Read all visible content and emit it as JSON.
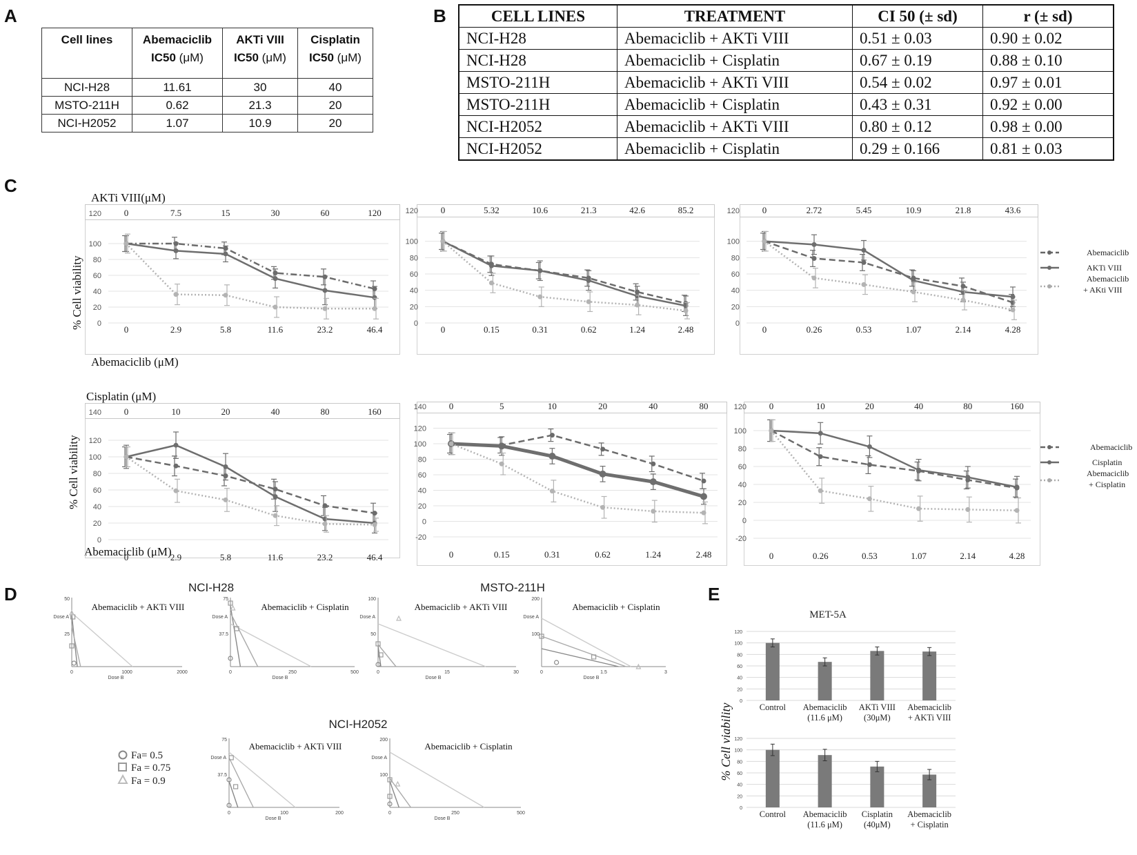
{
  "panels": {
    "A": "A",
    "B": "B",
    "C": "C",
    "D": "D",
    "E": "E"
  },
  "tableA": {
    "headers": [
      {
        "bold": "Cell lines",
        "unit": ""
      },
      {
        "bold": "Abemaciclib",
        "bold2": "IC50",
        "unit": " (μM)"
      },
      {
        "bold": "AKTi VIII",
        "bold2": "IC50",
        "unit": " (μM)"
      },
      {
        "bold": "Cisplatin",
        "bold2": "IC50",
        "unit": " (μM)"
      }
    ],
    "rows": [
      [
        "NCI-H28",
        "11.61",
        "30",
        "40"
      ],
      [
        "MSTO-211H",
        "0.62",
        "21.3",
        "20"
      ],
      [
        "NCI-H2052",
        "1.07",
        "10.9",
        "20"
      ]
    ]
  },
  "tableB": {
    "headers": [
      "CELL LINES",
      "TREATMENT",
      "CI 50 (± sd)",
      "r (± sd)"
    ],
    "rows": [
      [
        "NCI-H28",
        "Abemaciclib + AKTi VIII",
        "0.51 ± 0.03",
        "0.90 ± 0.02"
      ],
      [
        "NCI-H28",
        "Abemaciclib + Cisplatin",
        "0.67 ± 0.19",
        "0.88 ± 0.10"
      ],
      [
        "MSTO-211H",
        "Abemaciclib + AKTi VIII",
        "0.54 ± 0.02",
        "0.97 ± 0.01"
      ],
      [
        "MSTO-211H",
        "Abemaciclib + Cisplatin",
        "0.43 ± 0.31",
        "0.92 ± 0.00"
      ],
      [
        "NCI-H2052",
        "Abemaciclib + AKTi VIII",
        "0.80 ± 0.12",
        "0.98 ± 0.00"
      ],
      [
        "NCI-H2052",
        "Abemaciclib + Cisplatin",
        "0.29 ± 0.166",
        "0.81 ± 0.03"
      ]
    ]
  },
  "panelC": {
    "ylabel": "% Cell viability",
    "top_label_row1": "AKTi VIII(μM)",
    "top_label_row2": "Cisplatin (μM)",
    "bottom_label_row1": "Abemaciclib (μM)",
    "bottom_label_row2": "Abemaciclib  (μM)",
    "legend_row1": [
      "Abemaciclib",
      "AKTi VIII",
      "Abemaciclib",
      "+ AKti VIII"
    ],
    "legend_row2": [
      "Abemaciclib",
      "Cisplatin",
      "Abemaciclib",
      "+ Cisplatin"
    ]
  },
  "chart_data": [
    {
      "type": "line",
      "title": "NCI-H28 Abemaciclib + AKTi VIII",
      "ylabel": "% Cell viability",
      "ylim": [
        0,
        120
      ],
      "yticks": [
        "0",
        "20",
        "40",
        "60",
        "80",
        "100",
        "120"
      ],
      "top_x": [
        "0",
        "7.5",
        "15",
        "30",
        "60",
        "120"
      ],
      "bottom_x": [
        "0",
        "2.9",
        "5.8",
        "11.6",
        "23.2",
        "46.4"
      ],
      "series": [
        {
          "name": "Abemaciclib",
          "style": "dashdot",
          "values": [
            100,
            100,
            94,
            63,
            58,
            43
          ],
          "errors": [
            10,
            8,
            8,
            8,
            10,
            10
          ]
        },
        {
          "name": "AKTi VIII",
          "style": "solid",
          "values": [
            100,
            91,
            87,
            56,
            41,
            32
          ],
          "errors": [
            10,
            10,
            10,
            12,
            18,
            14
          ]
        },
        {
          "name": "Abemaciclib + AKti VIII",
          "style": "dotted",
          "values": [
            100,
            36,
            35,
            20,
            18,
            18
          ],
          "errors": [
            12,
            13,
            13,
            13,
            13,
            13
          ]
        }
      ]
    },
    {
      "type": "line",
      "title": "MSTO-211H Abemaciclib + AKTi VIII",
      "ylabel": "% Cell viability",
      "ylim": [
        0,
        120
      ],
      "yticks": [
        "0",
        "20",
        "40",
        "60",
        "80",
        "100",
        "120"
      ],
      "top_x": [
        "0",
        "5.32",
        "10.6",
        "21.3",
        "42.6",
        "85.2"
      ],
      "bottom_x": [
        "0",
        "0.15",
        "0.31",
        "0.62",
        "1.24",
        "2.48"
      ],
      "series": [
        {
          "name": "Abemaciclib",
          "style": "dashed",
          "values": [
            100,
            72,
            64,
            55,
            38,
            24
          ],
          "errors": [
            10,
            10,
            10,
            10,
            10,
            10
          ]
        },
        {
          "name": "AKTi VIII",
          "style": "solid",
          "values": [
            100,
            70,
            64,
            52,
            33,
            21
          ],
          "errors": [
            12,
            12,
            12,
            12,
            12,
            12
          ]
        },
        {
          "name": "Abemaciclib + AKti VIII",
          "style": "dotted",
          "values": [
            100,
            49,
            32,
            26,
            22,
            15
          ],
          "errors": [
            12,
            12,
            12,
            12,
            12,
            10
          ]
        }
      ]
    },
    {
      "type": "line",
      "title": "NCI-H2052 Abemaciclib + AKTi VIII",
      "ylabel": "% Cell viability",
      "ylim": [
        0,
        120
      ],
      "yticks": [
        "0",
        "20",
        "40",
        "60",
        "80",
        "100",
        "120"
      ],
      "top_x": [
        "0",
        "2.72",
        "5.45",
        "10.9",
        "21.8",
        "43.6"
      ],
      "bottom_x": [
        "0",
        "0.26",
        "0.53",
        "1.07",
        "2.14",
        "4.28"
      ],
      "series": [
        {
          "name": "Abemaciclib",
          "style": "dashed",
          "values": [
            100,
            79,
            74,
            55,
            45,
            25
          ],
          "errors": [
            10,
            10,
            10,
            10,
            10,
            10
          ]
        },
        {
          "name": "AKTi VIII",
          "style": "solid",
          "values": [
            100,
            96,
            89,
            52,
            38,
            32
          ],
          "errors": [
            12,
            12,
            12,
            12,
            12,
            12
          ]
        },
        {
          "name": "Abemaciclib + AKti VIII",
          "style": "dotted",
          "values": [
            100,
            55,
            47,
            38,
            28,
            16
          ],
          "errors": [
            12,
            12,
            12,
            12,
            12,
            12
          ]
        }
      ]
    },
    {
      "type": "line",
      "title": "NCI-H28 Abemaciclib + Cisplatin",
      "ylabel": "% Cell viability",
      "ylim": [
        0,
        140
      ],
      "yticks": [
        "0",
        "20",
        "40",
        "60",
        "80",
        "100",
        "120",
        "140"
      ],
      "top_x": [
        "0",
        "10",
        "20",
        "40",
        "80",
        "160"
      ],
      "bottom_x": [
        "0",
        "2.9",
        "5.8",
        "11.6",
        "23.2",
        "46.4"
      ],
      "series": [
        {
          "name": "Abemaciclib",
          "style": "dashed",
          "values": [
            100,
            89,
            77,
            61,
            41,
            32
          ],
          "errors": [
            12,
            12,
            12,
            12,
            12,
            12
          ]
        },
        {
          "name": "Cisplatin",
          "style": "solid",
          "values": [
            100,
            114,
            88,
            52,
            25,
            20
          ],
          "errors": [
            14,
            16,
            16,
            18,
            14,
            12
          ]
        },
        {
          "name": "Abemaciclib + Cisplatin",
          "style": "dotted",
          "values": [
            100,
            59,
            48,
            29,
            19,
            18
          ],
          "errors": [
            12,
            14,
            14,
            12,
            10,
            8
          ]
        }
      ]
    },
    {
      "type": "line",
      "title": "MSTO-211H Abemaciclib + Cisplatin",
      "ylabel": "% Cell viability",
      "ylim": [
        -20,
        140
      ],
      "yticks": [
        "-20",
        "0",
        "20",
        "40",
        "60",
        "80",
        "100",
        "120",
        "140"
      ],
      "top_x": [
        "0",
        "5",
        "10",
        "20",
        "40",
        "80"
      ],
      "bottom_x": [
        "0",
        "0.15",
        "0.31",
        "0.62",
        "1.24",
        "2.48"
      ],
      "series": [
        {
          "name": "Abemaciclib",
          "style": "dashed",
          "values": [
            100,
            98,
            111,
            93,
            74,
            52
          ],
          "errors": [
            12,
            10,
            8,
            8,
            10,
            10
          ]
        },
        {
          "name": "Cisplatin",
          "style": "solid",
          "values": [
            100,
            97,
            84,
            61,
            51,
            32
          ],
          "errors": [
            14,
            12,
            10,
            10,
            10,
            10
          ]
        },
        {
          "name": "Abemaciclib + Cisplatin",
          "style": "dotted",
          "values": [
            100,
            74,
            39,
            18,
            13,
            11
          ],
          "errors": [
            14,
            14,
            14,
            14,
            14,
            14
          ]
        }
      ]
    },
    {
      "type": "line",
      "title": "NCI-H2052 Abemaciclib + Cisplatin",
      "ylabel": "% Cell viability",
      "ylim": [
        -20,
        120
      ],
      "yticks": [
        "-20",
        "0",
        "20",
        "40",
        "60",
        "80",
        "100",
        "120"
      ],
      "top_x": [
        "0",
        "10",
        "20",
        "40",
        "80",
        "160"
      ],
      "bottom_x": [
        "0",
        "0.26",
        "0.53",
        "1.07",
        "2.14",
        "4.28"
      ],
      "series": [
        {
          "name": "Abemaciclib",
          "style": "dashed",
          "values": [
            100,
            71,
            62,
            55,
            45,
            36
          ],
          "errors": [
            12,
            10,
            10,
            10,
            10,
            10
          ]
        },
        {
          "name": "Cisplatin",
          "style": "solid",
          "values": [
            100,
            97,
            82,
            56,
            48,
            37
          ],
          "errors": [
            12,
            12,
            12,
            12,
            12,
            12
          ]
        },
        {
          "name": "Abemaciclib + Cisplatin",
          "style": "dotted",
          "values": [
            100,
            33,
            24,
            13,
            12,
            11
          ],
          "errors": [
            12,
            14,
            14,
            14,
            14,
            14
          ]
        }
      ]
    }
  ],
  "panelD": {
    "cell_titles": [
      "NCI-H28",
      "MSTO-211H",
      "NCI-H2052"
    ],
    "legend": [
      "Fa=  0.5",
      "Fa = 0.75",
      "Fa = 0.9"
    ],
    "isobolograms": [
      {
        "title": "Abemaciclib + AKTi VIII",
        "ymax": "50",
        "ymid": "25",
        "xticks": [
          "0",
          "1000",
          "2000"
        ]
      },
      {
        "title": "Abemaciclib + Cisplatin",
        "ymax": "75",
        "ymid": "37.5",
        "xticks": [
          "0",
          "250",
          "500"
        ]
      },
      {
        "title": "Abemaciclib + AKTi VIII",
        "ymax": "100",
        "ymid": "50",
        "xticks": [
          "0",
          "15",
          "30"
        ]
      },
      {
        "title": "Abemaciclib + Cisplatin",
        "ymax": "200",
        "ymid": "100",
        "xticks": [
          "0",
          "1.5",
          "3"
        ]
      },
      {
        "title": "Abemaciclib + AKTi VIII",
        "ymax": "75",
        "ymid": "37.5",
        "xticks": [
          "0",
          "100",
          "200"
        ]
      },
      {
        "title": "Abemaciclib + Cisplatin",
        "ymax": "200",
        "ymid": "100",
        "xticks": [
          "0",
          "250",
          "500"
        ]
      }
    ],
    "axis_a": "Dose A",
    "axis_b": "Dose B"
  },
  "panelE": {
    "title": "MET-5A",
    "ylabel": "% Cell viability",
    "bar_color": "#7a7a7a",
    "charts": [
      {
        "type": "bar",
        "categories": [
          [
            "Control"
          ],
          [
            "Abemaciclib",
            "(11.6 μM)"
          ],
          [
            "AKTi VIII",
            "(30μM)"
          ],
          [
            "Abemaciclib",
            "+ AKTi VIII"
          ]
        ],
        "values": [
          100,
          67,
          86,
          85
        ],
        "errors": [
          7,
          7,
          7,
          7
        ],
        "ylim": [
          0,
          120
        ],
        "yticks": [
          "0",
          "20",
          "40",
          "60",
          "80",
          "100",
          "120"
        ]
      },
      {
        "type": "bar",
        "categories": [
          [
            "Control"
          ],
          [
            "Abemaciclib",
            "(11.6 μM)"
          ],
          [
            "Cisplatin",
            "(40μM)"
          ],
          [
            "Abemaciclib",
            "+ Cisplatin"
          ]
        ],
        "values": [
          100,
          91,
          71,
          57
        ],
        "errors": [
          10,
          10,
          9,
          9
        ],
        "ylim": [
          0,
          120
        ],
        "yticks": [
          "0",
          "20",
          "40",
          "60",
          "80",
          "100",
          "120"
        ]
      }
    ]
  }
}
